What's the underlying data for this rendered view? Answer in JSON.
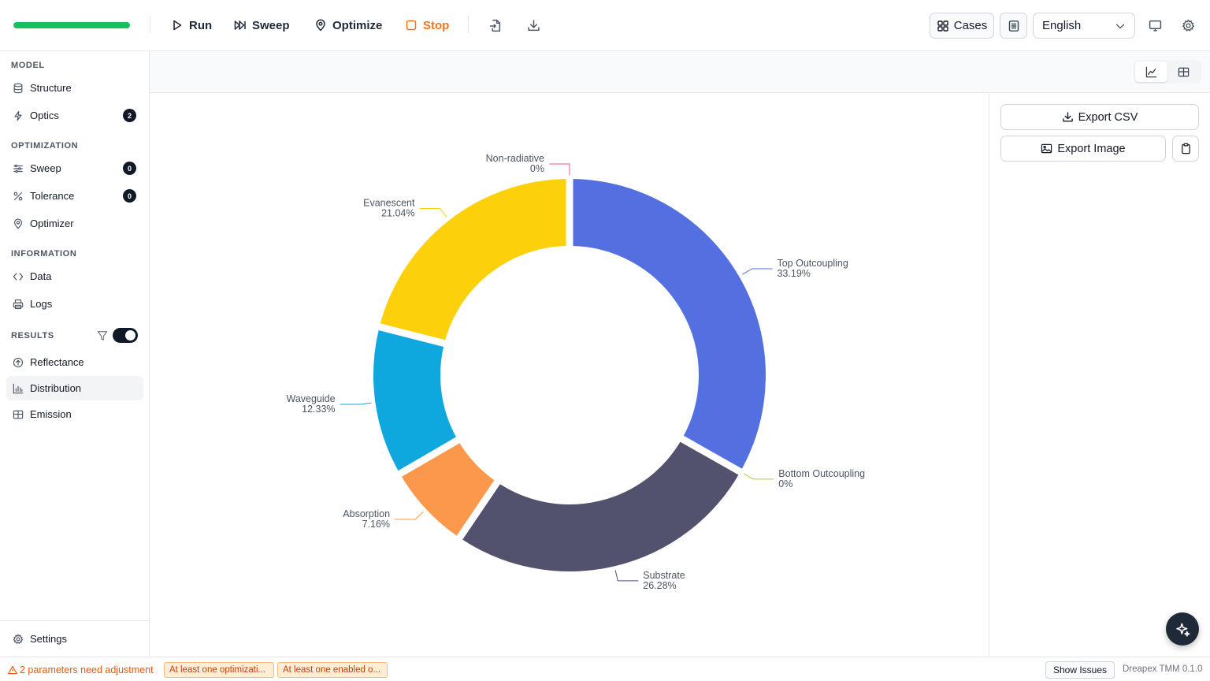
{
  "toolbar": {
    "progress": 1.0,
    "run_label": "Run",
    "sweep_label": "Sweep",
    "optimize_label": "Optimize",
    "stop_label": "Stop",
    "cases_label": "Cases",
    "language": "English",
    "accent_progress": "#16c060",
    "accent_stop": "#f97316"
  },
  "sidebar": {
    "model_label": "MODEL",
    "structure": "Structure",
    "optics": "Optics",
    "optics_badge": "2",
    "optimization_label": "OPTIMIZATION",
    "sweep": "Sweep",
    "sweep_badge": "0",
    "tolerance": "Tolerance",
    "tolerance_badge": "0",
    "optimizer": "Optimizer",
    "information_label": "INFORMATION",
    "data": "Data",
    "logs": "Logs",
    "results_label": "RESULTS",
    "results_toggle": true,
    "reflectance": "Reflectance",
    "distribution": "Distribution",
    "emission": "Emission",
    "settings": "Settings"
  },
  "right_panel": {
    "export_csv": "Export CSV",
    "export_image": "Export Image"
  },
  "status": {
    "warning": "2 parameters need adjustment",
    "chip1": "At least one optimizati...",
    "chip2": "At least one enabled o...",
    "show_issues": "Show Issues",
    "version": "Dreapex TMM 0.1.0"
  },
  "chart_data": {
    "type": "pie",
    "donut": true,
    "slices": [
      {
        "name": "Top Outcoupling",
        "value": 33.19,
        "label": "33.19%",
        "color": "#5470e0"
      },
      {
        "name": "Bottom Outcoupling",
        "value": 0,
        "label": "0%",
        "color": "#a3d13a"
      },
      {
        "name": "Substrate",
        "value": 26.28,
        "label": "26.28%",
        "color": "#52526f"
      },
      {
        "name": "Absorption",
        "value": 7.16,
        "label": "7.16%",
        "color": "#fc984b"
      },
      {
        "name": "Waveguide",
        "value": 12.33,
        "label": "12.33%",
        "color": "#0fa8de"
      },
      {
        "name": "Evanescent",
        "value": 21.04,
        "label": "21.04%",
        "color": "#fcd00b"
      },
      {
        "name": "Non-radiative",
        "value": 0,
        "label": "0%",
        "color": "#f05b7f"
      }
    ]
  }
}
